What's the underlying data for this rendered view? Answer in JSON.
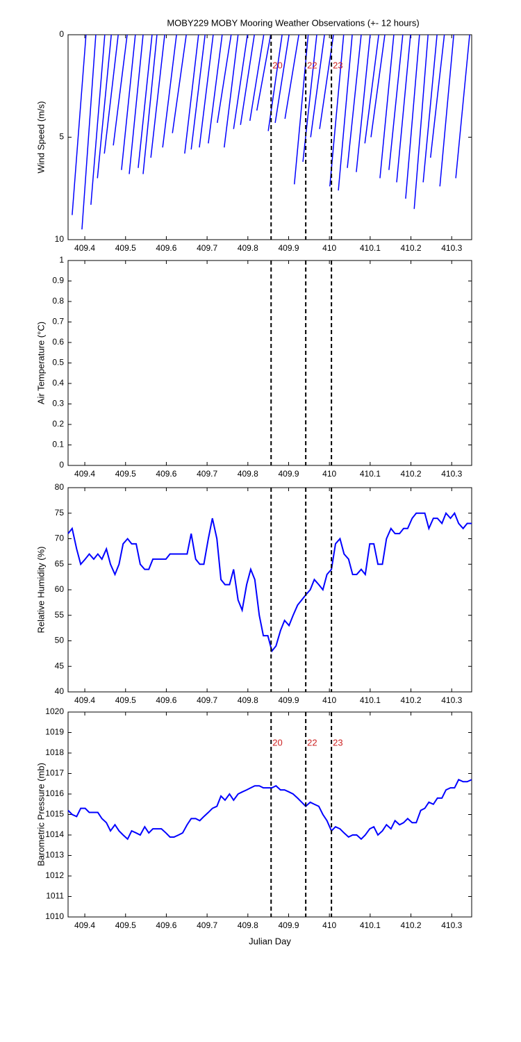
{
  "chart_data": [
    {
      "type": "feather",
      "title": "MOBY229 MOBY Mooring Weather Observations (+- 12 hours)",
      "y_label": "Wind Speed (m/s)",
      "color": "#0000ff",
      "xlim": [
        409.359,
        410.349
      ],
      "xticks": [
        409.4,
        409.5,
        409.6,
        409.7,
        409.8,
        409.9,
        410,
        410.1,
        410.2,
        410.3
      ],
      "ylim": [
        10,
        0
      ],
      "yticks": [
        0,
        5,
        10
      ],
      "vlines": [
        409.857,
        409.942,
        410.005
      ],
      "vline_labels": [
        "20",
        "22",
        "23"
      ],
      "x": [
        409.403,
        409.427,
        409.449,
        409.465,
        409.482,
        409.504,
        409.524,
        409.543,
        409.565,
        409.577,
        409.596,
        409.625,
        409.649,
        409.679,
        409.695,
        409.715,
        409.737,
        409.759,
        409.776,
        409.799,
        409.816,
        409.839,
        409.856,
        409.884,
        409.901,
        409.925,
        409.948,
        409.969,
        409.988,
        410.01,
        410.035,
        410.056,
        410.078,
        410.1,
        410.121,
        410.136,
        410.158,
        410.18,
        410.199,
        410.221,
        410.242,
        410.264,
        410.282,
        410.305,
        410.344
      ],
      "x_end": [
        409.369,
        409.393,
        409.415,
        409.431,
        409.448,
        409.47,
        409.49,
        409.509,
        409.531,
        409.543,
        409.562,
        409.591,
        409.615,
        409.645,
        409.661,
        409.681,
        409.703,
        409.725,
        409.742,
        409.765,
        409.782,
        409.805,
        409.822,
        409.85,
        409.867,
        409.891,
        409.914,
        409.935,
        409.954,
        409.976,
        410.001,
        410.022,
        410.044,
        410.066,
        410.087,
        410.102,
        410.124,
        410.146,
        410.165,
        410.187,
        410.208,
        410.23,
        410.248,
        410.271,
        410.31
      ],
      "values": [
        8.8,
        9.5,
        8.3,
        7,
        5.8,
        5.4,
        6.6,
        6.8,
        6.5,
        6.8,
        6,
        5.5,
        4.8,
        5.8,
        5.6,
        5.5,
        5.3,
        4.3,
        5.5,
        4.6,
        4.4,
        4.2,
        3.7,
        4.7,
        4.3,
        4.1,
        7.3,
        6.2,
        5,
        4.6,
        7.4,
        7.6,
        6.5,
        6.7,
        5.3,
        5,
        7,
        6.6,
        7.2,
        8,
        8.5,
        7.2,
        6,
        7.4,
        7
      ]
    },
    {
      "type": "line",
      "y_label": "Air Temperature (°C)",
      "xlim": [
        409.359,
        410.349
      ],
      "xticks": [
        409.4,
        409.5,
        409.6,
        409.7,
        409.8,
        409.9,
        410,
        410.1,
        410.2,
        410.3
      ],
      "ylim": [
        0,
        1
      ],
      "yticks": [
        0,
        0.1,
        0.2,
        0.3,
        0.4,
        0.5,
        0.6,
        0.7,
        0.8,
        0.9,
        1
      ],
      "vlines": [
        409.857,
        409.942,
        410.005
      ]
    },
    {
      "type": "line",
      "y_label": "Relative Humidity (%)",
      "xlim": [
        409.359,
        410.349
      ],
      "xticks": [
        409.4,
        409.5,
        409.6,
        409.7,
        409.8,
        409.9,
        410,
        410.1,
        410.2,
        410.3
      ],
      "ylim": [
        40,
        80
      ],
      "yticks": [
        40,
        45,
        50,
        55,
        60,
        65,
        70,
        75,
        80
      ],
      "vlines": [
        409.857,
        409.942,
        410.005
      ],
      "x": [
        409.359,
        409.369,
        409.38,
        409.39,
        409.401,
        409.411,
        409.422,
        409.432,
        409.442,
        409.453,
        409.463,
        409.474,
        409.484,
        409.494,
        409.505,
        409.515,
        409.526,
        409.536,
        409.547,
        409.557,
        409.567,
        409.578,
        409.588,
        409.599,
        409.609,
        409.619,
        409.63,
        409.64,
        409.651,
        409.661,
        409.672,
        409.682,
        409.692,
        409.703,
        409.713,
        409.724,
        409.734,
        409.744,
        409.755,
        409.765,
        409.776,
        409.786,
        409.797,
        409.807,
        409.817,
        409.828,
        409.838,
        409.849,
        409.859,
        409.869,
        409.88,
        409.89,
        409.901,
        409.911,
        409.922,
        409.932,
        409.942,
        409.953,
        409.963,
        409.974,
        409.984,
        409.994,
        410.005,
        410.015,
        410.026,
        410.036,
        410.047,
        410.057,
        410.067,
        410.078,
        410.088,
        410.099,
        410.109,
        410.119,
        410.13,
        410.14,
        410.151,
        410.161,
        410.172,
        410.182,
        410.192,
        410.203,
        410.213,
        410.224,
        410.234,
        410.244,
        410.255,
        410.265,
        410.276,
        410.286,
        410.297,
        410.307,
        410.317,
        410.328,
        410.338,
        410.349
      ],
      "series": [
        {
          "color": "#0000ff",
          "values": [
            71,
            72,
            68,
            65,
            66,
            67,
            66,
            67,
            66,
            68,
            65,
            63,
            65,
            69,
            70,
            69,
            69,
            65,
            64,
            64,
            66,
            66,
            66,
            66,
            67,
            67,
            67,
            67,
            67,
            71,
            66,
            65,
            65,
            70,
            74,
            70,
            62,
            61,
            61,
            64,
            58,
            56,
            61,
            64,
            62,
            55,
            51,
            51,
            48,
            49,
            52,
            54,
            53,
            55,
            57,
            58,
            59,
            60,
            62,
            61,
            60,
            63,
            64,
            69,
            70,
            67,
            66,
            63,
            63,
            64,
            63,
            69,
            69,
            65,
            65,
            70,
            72,
            71,
            71,
            72,
            72,
            74,
            75,
            75,
            75,
            72,
            74,
            74,
            73,
            75,
            74,
            75,
            73,
            72,
            73,
            73
          ]
        }
      ]
    },
    {
      "type": "line",
      "y_label": "Barometric Pressure (mb)",
      "x_label": "Julian Day",
      "xlim": [
        409.359,
        410.349
      ],
      "xticks": [
        409.4,
        409.5,
        409.6,
        409.7,
        409.8,
        409.9,
        410,
        410.1,
        410.2,
        410.3
      ],
      "ylim": [
        1010,
        1020
      ],
      "yticks": [
        1010,
        1011,
        1012,
        1013,
        1014,
        1015,
        1016,
        1017,
        1018,
        1019,
        1020
      ],
      "vlines": [
        409.857,
        409.942,
        410.005
      ],
      "vline_labels": [
        "20",
        "22",
        "23"
      ],
      "x": [
        409.359,
        409.369,
        409.38,
        409.39,
        409.401,
        409.411,
        409.422,
        409.432,
        409.442,
        409.453,
        409.463,
        409.474,
        409.484,
        409.494,
        409.505,
        409.515,
        409.526,
        409.536,
        409.547,
        409.557,
        409.567,
        409.578,
        409.588,
        409.599,
        409.609,
        409.619,
        409.63,
        409.64,
        409.651,
        409.661,
        409.672,
        409.682,
        409.692,
        409.703,
        409.713,
        409.724,
        409.734,
        409.744,
        409.755,
        409.765,
        409.776,
        409.786,
        409.797,
        409.807,
        409.817,
        409.828,
        409.838,
        409.849,
        409.859,
        409.869,
        409.88,
        409.89,
        409.901,
        409.911,
        409.922,
        409.932,
        409.942,
        409.953,
        409.963,
        409.974,
        409.984,
        409.994,
        410.005,
        410.015,
        410.026,
        410.036,
        410.047,
        410.057,
        410.067,
        410.078,
        410.088,
        410.099,
        410.109,
        410.119,
        410.13,
        410.14,
        410.151,
        410.161,
        410.172,
        410.182,
        410.192,
        410.203,
        410.213,
        410.224,
        410.234,
        410.244,
        410.255,
        410.265,
        410.276,
        410.286,
        410.297,
        410.307,
        410.317,
        410.328,
        410.338,
        410.349
      ],
      "series": [
        {
          "color": "#0000ff",
          "values": [
            1015.2,
            1015,
            1014.9,
            1015.3,
            1015.3,
            1015.1,
            1015.1,
            1015.1,
            1014.8,
            1014.6,
            1014.2,
            1014.5,
            1014.2,
            1014,
            1013.8,
            1014.2,
            1014.1,
            1014,
            1014.4,
            1014.1,
            1014.3,
            1014.3,
            1014.3,
            1014.1,
            1013.9,
            1013.9,
            1014,
            1014.1,
            1014.5,
            1014.8,
            1014.8,
            1014.7,
            1014.9,
            1015.1,
            1015.3,
            1015.4,
            1015.9,
            1015.7,
            1016,
            1015.7,
            1016,
            1016.1,
            1016.2,
            1016.3,
            1016.4,
            1016.4,
            1016.3,
            1016.3,
            1016.3,
            1016.4,
            1016.2,
            1016.2,
            1016.1,
            1016,
            1015.8,
            1015.6,
            1015.4,
            1015.6,
            1015.5,
            1015.4,
            1015,
            1014.7,
            1014.2,
            1014.4,
            1014.3,
            1014.1,
            1013.9,
            1014,
            1014,
            1013.8,
            1014,
            1014.3,
            1014.4,
            1014,
            1014.2,
            1014.5,
            1014.3,
            1014.7,
            1014.5,
            1014.6,
            1014.8,
            1014.6,
            1014.6,
            1015.2,
            1015.3,
            1015.6,
            1015.5,
            1015.8,
            1015.8,
            1016.2,
            1016.3,
            1016.3,
            1016.7,
            1016.6,
            1016.6,
            1016.7
          ]
        }
      ]
    }
  ]
}
